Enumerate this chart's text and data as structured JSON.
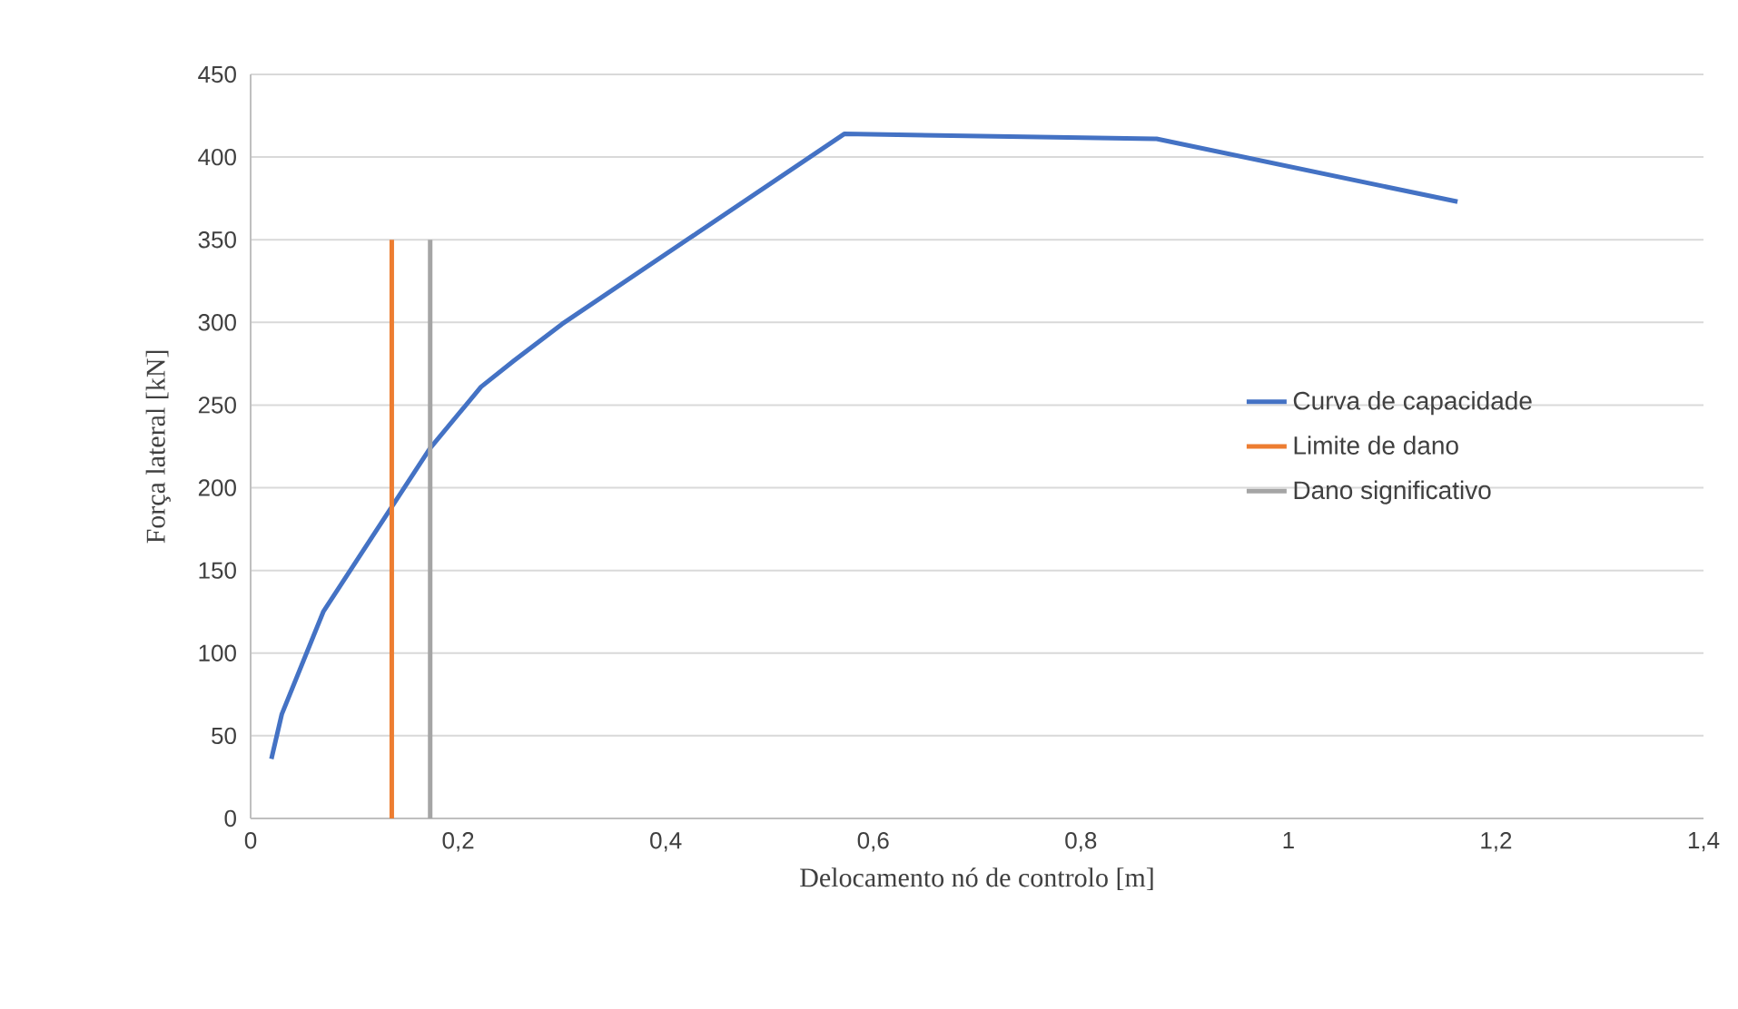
{
  "chart_data": {
    "type": "line",
    "xlabel": "Delocamento nó de controlo [m]",
    "ylabel": "Força lateral [kN]",
    "xlim": [
      0,
      1.4
    ],
    "ylim": [
      0,
      450
    ],
    "xticks": [
      0,
      {
        "value": 0.2,
        "label": "0,2"
      },
      {
        "value": 0.4,
        "label": "0,4"
      },
      {
        "value": 0.6,
        "label": "0,6"
      },
      {
        "value": 0.8,
        "label": "0,8"
      },
      1,
      {
        "value": 1.2,
        "label": "1,2"
      },
      {
        "value": 1.4,
        "label": "1,4"
      }
    ],
    "yticks": [
      0,
      50,
      100,
      150,
      200,
      250,
      300,
      350,
      400,
      450
    ],
    "grid": "y",
    "legend": "right",
    "marker": "none",
    "line_style": "solid",
    "series": [
      {
        "name": "Curva de capacidade",
        "color": "#4472c4",
        "x": [
          0.02,
          0.03,
          0.07,
          0.173,
          0.222,
          0.254,
          0.3,
          0.572,
          0.873,
          1.163
        ],
        "values": [
          36,
          63,
          125,
          224,
          261,
          277,
          299,
          414,
          411,
          373
        ]
      },
      {
        "name": "Limite de dano",
        "color": "#ed7d31",
        "x": [
          0.136,
          0.136
        ],
        "values": [
          0,
          350
        ]
      },
      {
        "name": "Dano significativo",
        "color": "#a5a5a5",
        "x": [
          0.173,
          0.173
        ],
        "values": [
          0,
          350
        ]
      }
    ]
  }
}
